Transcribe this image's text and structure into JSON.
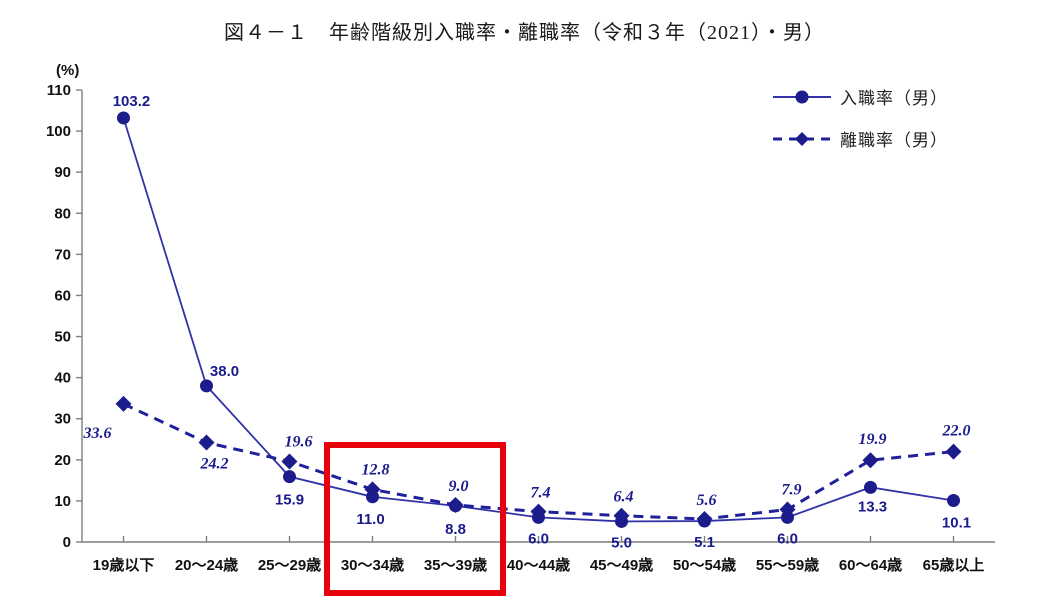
{
  "page": {
    "title": "図４－１　年齢階級別入職率・離職率（令和３年（2021）・男）"
  },
  "y_axis_unit": "(%)",
  "chart_data": {
    "type": "line",
    "title": "図４－１　年齢階級別入職率・離職率（令和３年（2021）・男）",
    "categories": [
      "19歳以下",
      "20～24歳",
      "25～29歳",
      "30～34歳",
      "35～39歳",
      "40～44歳",
      "45～49歳",
      "50～54歳",
      "55～59歳",
      "60～64歳",
      "65歳以上"
    ],
    "series": [
      {
        "name": "入職率（男）",
        "values": [
          103.2,
          38.0,
          15.9,
          11.0,
          8.8,
          6.0,
          5.0,
          5.1,
          6.0,
          13.3,
          10.1
        ],
        "labels": [
          "103.2",
          "38.0",
          "15.9",
          "11.0",
          "8.8",
          "6.0",
          "5.0",
          "5.1",
          "6.0",
          "13.3",
          "10.1"
        ],
        "line_style": "solid",
        "marker": "circle",
        "label_font_style": "normal",
        "label_offsets": [
          [
            8,
            -12
          ],
          [
            18,
            -10
          ],
          [
            0,
            28
          ],
          [
            -2,
            27
          ],
          [
            0,
            28
          ],
          [
            0,
            26
          ],
          [
            0,
            26
          ],
          [
            0,
            26
          ],
          [
            0,
            26
          ],
          [
            2,
            24
          ],
          [
            3,
            27
          ]
        ]
      },
      {
        "name": "離職率（男）",
        "values": [
          33.6,
          24.2,
          19.6,
          12.8,
          9.0,
          7.4,
          6.4,
          5.6,
          7.9,
          19.9,
          22.0
        ],
        "labels": [
          "33.6",
          "24.2",
          "19.6",
          "12.8",
          "9.0",
          "7.4",
          "6.4",
          "5.6",
          "7.9",
          "19.9",
          "22.0"
        ],
        "line_style": "dashed",
        "marker": "diamond",
        "label_font_style": "italic",
        "label_offsets": [
          [
            -26,
            34
          ],
          [
            8,
            26
          ],
          [
            9,
            -15
          ],
          [
            3,
            -15
          ],
          [
            3,
            -14
          ],
          [
            2,
            -14
          ],
          [
            2,
            -14
          ],
          [
            2,
            -14
          ],
          [
            4,
            -15
          ],
          [
            2,
            -16
          ],
          [
            3,
            -16
          ]
        ]
      }
    ],
    "xlabel": "",
    "ylabel": "(%)",
    "ylim": [
      0,
      110
    ],
    "y_tick_step": 10,
    "grid": false,
    "legend_position": "top-right",
    "colors": {
      "solid_line": "#3232A8",
      "dashed_line": "#20209A",
      "marker": "#1C1C8C",
      "data_label": "#1A1B8C",
      "axis": "#7F7F7F",
      "tick_label": "#111111",
      "highlight_box": "#E8000D"
    },
    "highlight": {
      "from_category": "30～34歳",
      "to_category": "35～39歳"
    }
  }
}
